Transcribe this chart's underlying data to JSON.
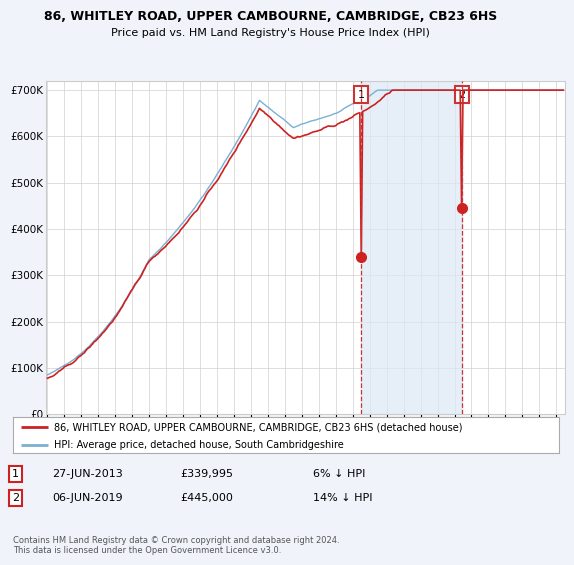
{
  "title1": "86, WHITLEY ROAD, UPPER CAMBOURNE, CAMBRIDGE, CB23 6HS",
  "title2": "Price paid vs. HM Land Registry's House Price Index (HPI)",
  "legend_line1": "86, WHITLEY ROAD, UPPER CAMBOURNE, CAMBRIDGE, CB23 6HS (detached house)",
  "legend_line2": "HPI: Average price, detached house, South Cambridgeshire",
  "footnote": "Contains HM Land Registry data © Crown copyright and database right 2024.\nThis data is licensed under the Open Government Licence v3.0.",
  "transaction1_date": "27-JUN-2013",
  "transaction1_price": 339995,
  "transaction1_pct": "6% ↓ HPI",
  "transaction1_year": 2013.49,
  "transaction2_date": "06-JUN-2019",
  "transaction2_price": 445000,
  "transaction2_pct": "14% ↓ HPI",
  "transaction2_year": 2019.43,
  "hpi_color": "#7bafd4",
  "hpi_fill_color": "#dce9f5",
  "price_color": "#cc2222",
  "vline_color": "#cc3333",
  "background_color": "#f0f4fa",
  "plot_bg_color": "#ffffff",
  "ylim": [
    0,
    720000
  ],
  "yticks": [
    0,
    100000,
    200000,
    300000,
    400000,
    500000,
    600000,
    700000
  ],
  "ytick_labels": [
    "£0",
    "£100K",
    "£200K",
    "£300K",
    "£400K",
    "£500K",
    "£600K",
    "£700K"
  ],
  "xmin": 1994.9,
  "xmax": 2025.5
}
